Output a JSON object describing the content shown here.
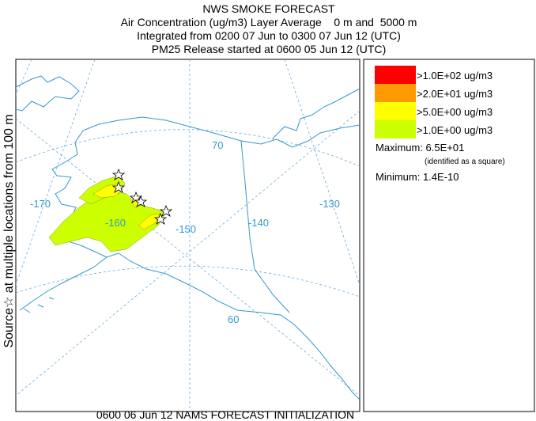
{
  "header": {
    "lines": [
      "NWS SMOKE FORECAST",
      "Air Concentration (ug/m3) Layer Average    0 m and  5000 m",
      "Integrated from 0200 07 Jun to 0300 07 Jun 12 (UTC)",
      "PM25 Release started at 0600 05 Jun 12 (UTC)"
    ]
  },
  "side_label": "Source☆ at multiple locations from 100 m",
  "map": {
    "labels": [
      "-170",
      "-160",
      "-150",
      "-140",
      "-130",
      "70",
      "60"
    ]
  },
  "legend": {
    "items": [
      {
        "label": ">1.0E+02 ug/m3",
        "color": "#ff0000"
      },
      {
        "label": ">2.0E+01 ug/m3",
        "color": "#ff9900"
      },
      {
        "label": ">5.0E+00 ug/m3",
        "color": "#ffff00"
      },
      {
        "label": ">1.0E+00 ug/m3",
        "color": "#ccff00"
      }
    ]
  },
  "stats": {
    "maximum": "Maximum: 6.5E+01",
    "maximum_note": "(identified as a square)",
    "minimum": "Minimum: 1.4E-10"
  },
  "footer": "0600 06 Jun 12 NAMS FORECAST INITIALIZATION"
}
